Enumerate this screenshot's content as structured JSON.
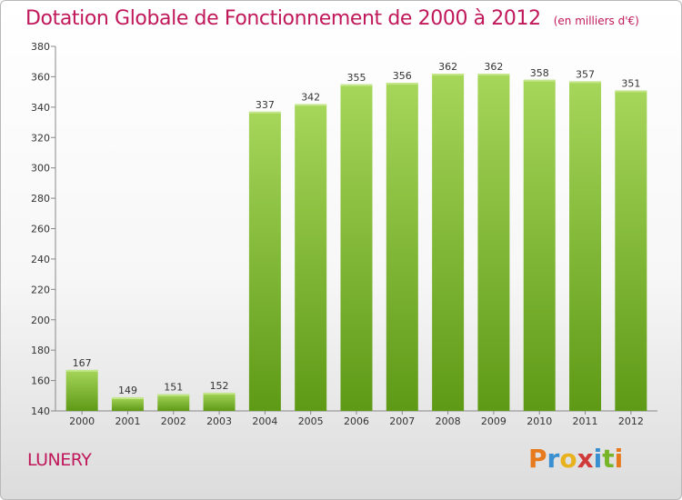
{
  "title": "Dotation Globale de Fonctionnement de 2000 à 2012",
  "unit": "(en milliers d'€)",
  "commune": "LUNERY",
  "logo": {
    "letters": [
      "P",
      "r",
      "o",
      "x",
      "i",
      "t",
      "i"
    ],
    "colors": [
      "#e87a1e",
      "#3a8fd0",
      "#e8b21e",
      "#d03a3a",
      "#3a8fd0",
      "#78b428",
      "#e87a1e"
    ]
  },
  "colors": {
    "bar_top": "#a6d65a",
    "bar_bottom": "#5e9a16",
    "title": "#c0185a"
  },
  "chart_data": {
    "type": "bar",
    "categories": [
      "2000",
      "2001",
      "2002",
      "2003",
      "2004",
      "2005",
      "2006",
      "2007",
      "2008",
      "2009",
      "2010",
      "2011",
      "2012"
    ],
    "values": [
      167,
      149,
      151,
      152,
      337,
      342,
      355,
      356,
      362,
      362,
      358,
      357,
      351
    ],
    "ylim": [
      140,
      380
    ],
    "yticks": [
      140,
      160,
      180,
      200,
      220,
      240,
      260,
      280,
      300,
      320,
      340,
      360,
      380
    ],
    "grid": false
  }
}
